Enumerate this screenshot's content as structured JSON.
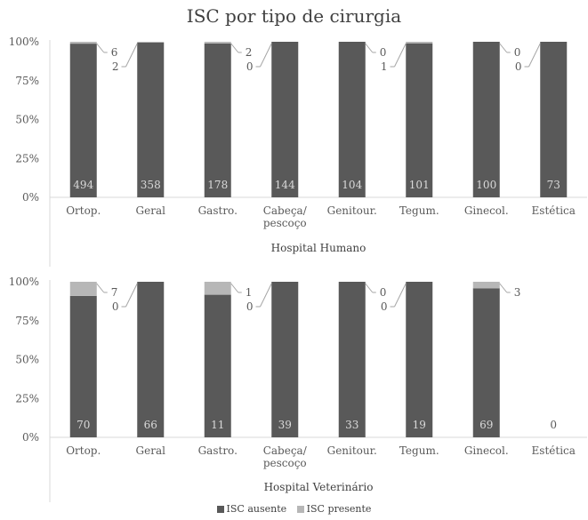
{
  "title": "ISC por tipo de cirurgia",
  "colors": {
    "ausente": "#595959",
    "presente": "#b7b7b7",
    "axis": "#d9d9d9",
    "text": "#595959"
  },
  "legend": [
    {
      "label": "ISC ausente",
      "color": "#595959"
    },
    {
      "label": "ISC presente",
      "color": "#b7b7b7"
    }
  ],
  "chart_data": [
    {
      "type": "bar",
      "stacked": "percent",
      "title": "Hospital Humano",
      "categories": [
        "Ortop.",
        "Geral",
        "Gastro.",
        "Cabeça/ pescoço",
        "Genitour.",
        "Tegum.",
        "Ginecol.",
        "Estética"
      ],
      "ylim": [
        0,
        100
      ],
      "yticks": [
        "0%",
        "25%",
        "50%",
        "75%",
        "100%"
      ],
      "series": [
        {
          "name": "ISC ausente",
          "values": [
            494,
            358,
            178,
            144,
            104,
            101,
            100,
            73
          ]
        },
        {
          "name": "ISC presente",
          "values": [
            6,
            2,
            2,
            0,
            0,
            1,
            0,
            0
          ]
        }
      ],
      "annotations": [
        {
          "category": "Ortop.",
          "labels": [
            "6",
            "2"
          ]
        },
        {
          "category": "Gastro.",
          "labels": [
            "2",
            "0"
          ]
        },
        {
          "category": "Genitour.",
          "labels": [
            "0",
            "1"
          ]
        },
        {
          "category": "Ginecol.",
          "labels": [
            "0",
            "0"
          ]
        }
      ]
    },
    {
      "type": "bar",
      "stacked": "percent",
      "title": "Hospital Veterinário",
      "categories": [
        "Ortop.",
        "Geral",
        "Gastro.",
        "Cabeça/ pescoço",
        "Genitour.",
        "Tegum.",
        "Ginecol.",
        "Estética"
      ],
      "ylim": [
        0,
        100
      ],
      "yticks": [
        "0%",
        "25%",
        "50%",
        "75%",
        "100%"
      ],
      "series": [
        {
          "name": "ISC ausente",
          "values": [
            70,
            66,
            11,
            39,
            33,
            19,
            69,
            0
          ]
        },
        {
          "name": "ISC presente",
          "values": [
            7,
            0,
            1,
            0,
            0,
            0,
            3,
            0
          ]
        }
      ],
      "annotations": [
        {
          "category": "Ortop.",
          "labels": [
            "7",
            "0"
          ]
        },
        {
          "category": "Gastro.",
          "labels": [
            "1",
            "0"
          ]
        },
        {
          "category": "Genitour.",
          "labels": [
            "0",
            "0"
          ]
        },
        {
          "category": "Ginecol.",
          "labels": [
            "3"
          ]
        }
      ]
    }
  ]
}
